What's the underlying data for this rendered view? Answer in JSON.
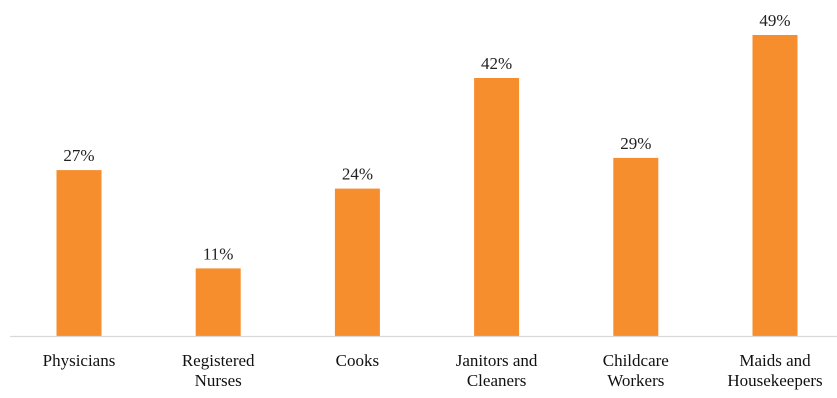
{
  "colors": {
    "bar": "#F68E2E",
    "axis": "#D9D9D9",
    "text": "#222222"
  },
  "chart_data": {
    "type": "bar",
    "categories": [
      [
        "Physicians"
      ],
      [
        "Registered",
        "Nurses"
      ],
      [
        "Cooks"
      ],
      [
        "Janitors and",
        "Cleaners"
      ],
      [
        "Childcare",
        "Workers"
      ],
      [
        "Maids and",
        "Housekeepers"
      ]
    ],
    "values": [
      27,
      11,
      24,
      42,
      29,
      49
    ],
    "value_labels": [
      "27%",
      "11%",
      "24%",
      "42%",
      "29%",
      "49%"
    ],
    "value_unit": "%",
    "ylim": [
      0,
      49
    ],
    "grid": false,
    "legend": "none"
  }
}
